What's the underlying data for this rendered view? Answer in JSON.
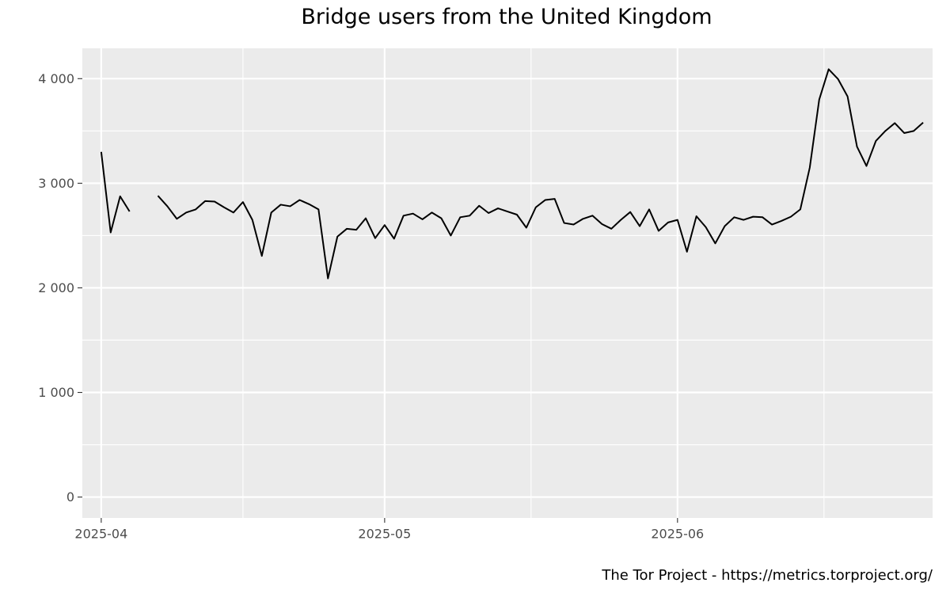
{
  "chart_data": {
    "type": "line",
    "title": "Bridge users from the United Kingdom",
    "caption": "The Tor Project - https://metrics.torproject.org/",
    "xlabel": "",
    "ylabel": "",
    "x_ticks": [
      {
        "label": "2025-04",
        "date": "2025-04-01"
      },
      {
        "label": "2025-05",
        "date": "2025-05-01"
      },
      {
        "label": "2025-06",
        "date": "2025-06-01"
      }
    ],
    "y_ticks": [
      {
        "label": "0",
        "value": 0
      },
      {
        "label": "1 000",
        "value": 1000
      },
      {
        "label": "2 000",
        "value": 2000
      },
      {
        "label": "3 000",
        "value": 3000
      },
      {
        "label": "4 000",
        "value": 4000
      }
    ],
    "ylim": [
      -200,
      4290
    ],
    "xlim": [
      "2025-03-30",
      "2025-06-28"
    ],
    "grid": true,
    "colors": {
      "panel": "#ebebeb",
      "grid": "#ffffff",
      "line": "#000000",
      "tick_text": "#4d4d4d",
      "tick_mark": "#333333"
    },
    "series": [
      {
        "values": [
          [
            "2025-04-01",
            3300
          ],
          [
            "2025-04-02",
            2530
          ],
          [
            "2025-04-03",
            2875
          ],
          [
            "2025-04-04",
            2730
          ],
          [
            "2025-04-05",
            null
          ],
          [
            "2025-04-06",
            null
          ],
          [
            "2025-04-07",
            2880
          ],
          [
            "2025-04-08",
            2780
          ],
          [
            "2025-04-09",
            2660
          ],
          [
            "2025-04-10",
            2720
          ],
          [
            "2025-04-11",
            2750
          ],
          [
            "2025-04-12",
            2830
          ],
          [
            "2025-04-13",
            2825
          ],
          [
            "2025-04-14",
            2770
          ],
          [
            "2025-04-15",
            2720
          ],
          [
            "2025-04-16",
            2820
          ],
          [
            "2025-04-17",
            2650
          ],
          [
            "2025-04-18",
            2305
          ],
          [
            "2025-04-19",
            2720
          ],
          [
            "2025-04-20",
            2795
          ],
          [
            "2025-04-21",
            2780
          ],
          [
            "2025-04-22",
            2840
          ],
          [
            "2025-04-23",
            2800
          ],
          [
            "2025-04-24",
            2750
          ],
          [
            "2025-04-25",
            2090
          ],
          [
            "2025-04-26",
            2490
          ],
          [
            "2025-04-27",
            2565
          ],
          [
            "2025-04-28",
            2555
          ],
          [
            "2025-04-29",
            2665
          ],
          [
            "2025-04-30",
            2475
          ],
          [
            "2025-05-01",
            2600
          ],
          [
            "2025-05-02",
            2470
          ],
          [
            "2025-05-03",
            2690
          ],
          [
            "2025-05-04",
            2710
          ],
          [
            "2025-05-05",
            2655
          ],
          [
            "2025-05-06",
            2720
          ],
          [
            "2025-05-07",
            2665
          ],
          [
            "2025-05-08",
            2500
          ],
          [
            "2025-05-09",
            2675
          ],
          [
            "2025-05-10",
            2690
          ],
          [
            "2025-05-11",
            2785
          ],
          [
            "2025-05-12",
            2715
          ],
          [
            "2025-05-13",
            2760
          ],
          [
            "2025-05-14",
            2730
          ],
          [
            "2025-05-15",
            2700
          ],
          [
            "2025-05-16",
            2575
          ],
          [
            "2025-05-17",
            2770
          ],
          [
            "2025-05-18",
            2840
          ],
          [
            "2025-05-19",
            2850
          ],
          [
            "2025-05-20",
            2620
          ],
          [
            "2025-05-21",
            2605
          ],
          [
            "2025-05-22",
            2660
          ],
          [
            "2025-05-23",
            2690
          ],
          [
            "2025-05-24",
            2610
          ],
          [
            "2025-05-25",
            2565
          ],
          [
            "2025-05-26",
            2650
          ],
          [
            "2025-05-27",
            2725
          ],
          [
            "2025-05-28",
            2590
          ],
          [
            "2025-05-29",
            2750
          ],
          [
            "2025-05-30",
            2545
          ],
          [
            "2025-05-31",
            2625
          ],
          [
            "2025-06-01",
            2650
          ],
          [
            "2025-06-02",
            2345
          ],
          [
            "2025-06-03",
            2685
          ],
          [
            "2025-06-04",
            2580
          ],
          [
            "2025-06-05",
            2425
          ],
          [
            "2025-06-06",
            2590
          ],
          [
            "2025-06-07",
            2675
          ],
          [
            "2025-06-08",
            2650
          ],
          [
            "2025-06-09",
            2680
          ],
          [
            "2025-06-10",
            2675
          ],
          [
            "2025-06-11",
            2605
          ],
          [
            "2025-06-12",
            2640
          ],
          [
            "2025-06-13",
            2680
          ],
          [
            "2025-06-14",
            2750
          ],
          [
            "2025-06-15",
            3150
          ],
          [
            "2025-06-16",
            3800
          ],
          [
            "2025-06-17",
            4090
          ],
          [
            "2025-06-18",
            3995
          ],
          [
            "2025-06-19",
            3830
          ],
          [
            "2025-06-20",
            3350
          ],
          [
            "2025-06-21",
            3165
          ],
          [
            "2025-06-22",
            3405
          ],
          [
            "2025-06-23",
            3500
          ],
          [
            "2025-06-24",
            3575
          ],
          [
            "2025-06-25",
            3480
          ],
          [
            "2025-06-26",
            3500
          ],
          [
            "2025-06-27",
            3580
          ]
        ]
      }
    ]
  }
}
